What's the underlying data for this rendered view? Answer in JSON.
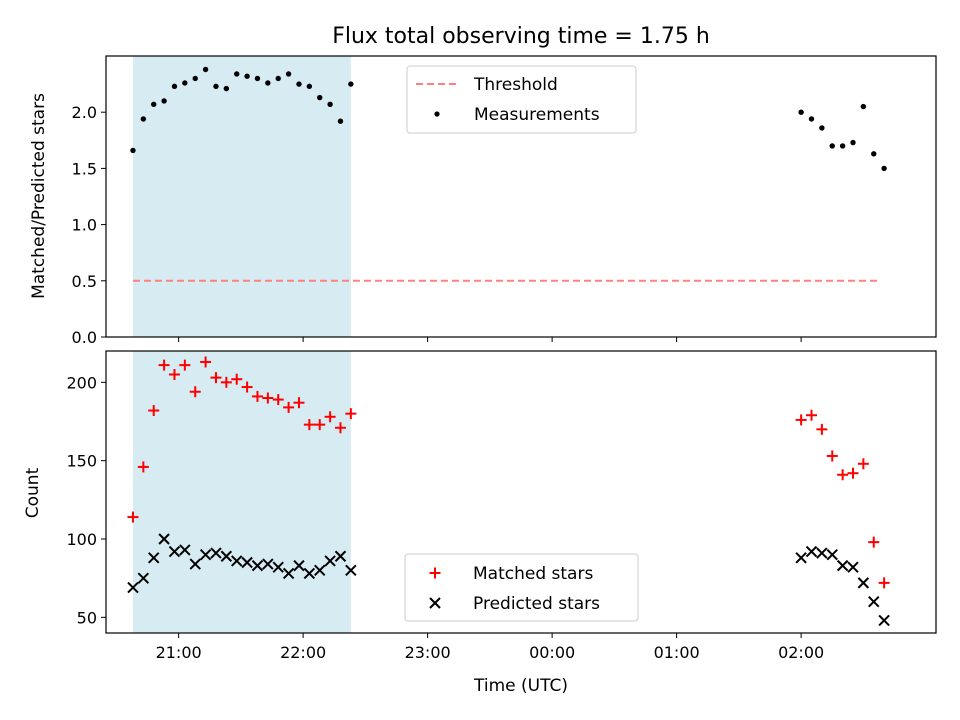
{
  "chart_data": [
    {
      "type": "scatter",
      "title": "Flux total observing time = 1.75 h",
      "xlabel": "",
      "ylabel": "Matched/Predicted stars",
      "xlim": [
        "20:25",
        "03:05"
      ],
      "ylim": [
        0,
        2.5
      ],
      "y_ticks": [
        0.0,
        0.5,
        1.0,
        1.5,
        2.0
      ],
      "y_tick_labels": [
        "0.0",
        "0.5",
        "1.0",
        "1.5",
        "2.0"
      ],
      "shaded_interval": [
        "20:38",
        "22:23"
      ],
      "shade_color": "#add8e6",
      "grid": false,
      "legend_position": "top-center",
      "series": [
        {
          "name": "Threshold",
          "kind": "dashed-line",
          "color": "#ff8080",
          "x": [
            "20:38",
            "02:38"
          ],
          "y": [
            0.5,
            0.5
          ]
        },
        {
          "name": "Measurements",
          "kind": "dot",
          "color": "#000000",
          "x": [
            "20:38",
            "20:43",
            "20:48",
            "20:53",
            "20:58",
            "21:03",
            "21:08",
            "21:13",
            "21:18",
            "21:23",
            "21:28",
            "21:33",
            "21:38",
            "21:43",
            "21:48",
            "21:53",
            "21:58",
            "22:03",
            "22:08",
            "22:13",
            "22:18",
            "22:23",
            "02:00",
            "02:05",
            "02:10",
            "02:15",
            "02:20",
            "02:25",
            "02:30",
            "02:35",
            "02:40"
          ],
          "y": [
            1.66,
            1.94,
            2.07,
            2.1,
            2.23,
            2.26,
            2.3,
            2.38,
            2.23,
            2.21,
            2.34,
            2.32,
            2.3,
            2.26,
            2.3,
            2.34,
            2.25,
            2.23,
            2.13,
            2.07,
            1.92,
            2.25,
            2.0,
            1.94,
            1.86,
            1.7,
            1.7,
            1.73,
            2.05,
            1.63,
            1.5
          ]
        }
      ]
    },
    {
      "type": "scatter",
      "title": "",
      "xlabel": "Time (UTC)",
      "ylabel": "Count",
      "xlim": [
        "20:25",
        "03:05"
      ],
      "ylim": [
        40,
        220
      ],
      "y_ticks": [
        50,
        100,
        150,
        200
      ],
      "y_tick_labels": [
        "50",
        "100",
        "150",
        "200"
      ],
      "x_ticks": [
        "21:00",
        "22:00",
        "23:00",
        "00:00",
        "01:00",
        "02:00"
      ],
      "shaded_interval": [
        "20:38",
        "22:23"
      ],
      "shade_color": "#add8e6",
      "grid": false,
      "legend_position": "bottom-center",
      "series": [
        {
          "name": "Matched stars",
          "kind": "plus",
          "color": "#ff0000",
          "x": [
            "20:38",
            "20:43",
            "20:48",
            "20:53",
            "20:58",
            "21:03",
            "21:08",
            "21:13",
            "21:18",
            "21:23",
            "21:28",
            "21:33",
            "21:38",
            "21:43",
            "21:48",
            "21:53",
            "21:58",
            "22:03",
            "22:08",
            "22:13",
            "22:18",
            "22:23",
            "02:00",
            "02:05",
            "02:10",
            "02:15",
            "02:20",
            "02:25",
            "02:30",
            "02:35",
            "02:40"
          ],
          "y": [
            114,
            146,
            182,
            211,
            205,
            211,
            194,
            213,
            203,
            200,
            202,
            197,
            191,
            190,
            189,
            184,
            187,
            173,
            173,
            178,
            171,
            180,
            176,
            179,
            170,
            153,
            141,
            142,
            148,
            98,
            72
          ]
        },
        {
          "name": "Predicted stars",
          "kind": "x",
          "color": "#000000",
          "x": [
            "20:38",
            "20:43",
            "20:48",
            "20:53",
            "20:58",
            "21:03",
            "21:08",
            "21:13",
            "21:18",
            "21:23",
            "21:28",
            "21:33",
            "21:38",
            "21:43",
            "21:48",
            "21:53",
            "21:58",
            "22:03",
            "22:08",
            "22:13",
            "22:18",
            "22:23",
            "02:00",
            "02:05",
            "02:10",
            "02:15",
            "02:20",
            "02:25",
            "02:30",
            "02:35",
            "02:40"
          ],
          "y": [
            69,
            75,
            88,
            100,
            92,
            93,
            84,
            90,
            91,
            89,
            86,
            85,
            83,
            84,
            82,
            78,
            83,
            78,
            80,
            86,
            89,
            80,
            88,
            92,
            91,
            90,
            83,
            82,
            72,
            60,
            48
          ]
        }
      ]
    }
  ]
}
